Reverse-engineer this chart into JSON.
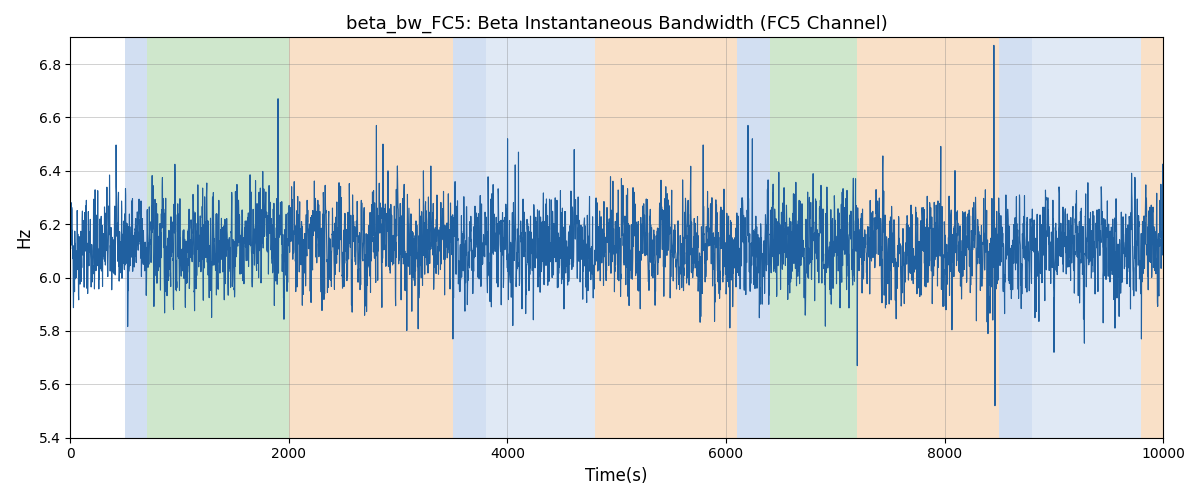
{
  "title": "beta_bw_FC5: Beta Instantaneous Bandwidth (FC5 Channel)",
  "xlabel": "Time(s)",
  "ylabel": "Hz",
  "xlim": [
    0,
    10000
  ],
  "ylim": [
    5.4,
    6.9
  ],
  "yticks": [
    5.4,
    5.6,
    5.8,
    6.0,
    6.2,
    6.4,
    6.6,
    6.8
  ],
  "xticks": [
    0,
    2000,
    4000,
    6000,
    8000,
    10000
  ],
  "line_color": "#2060a0",
  "line_width": 0.8,
  "seed": 42,
  "n_points": 5000,
  "background_color": "#ffffff",
  "regions": [
    {
      "start": 500,
      "end": 700,
      "color": "#aec6e8",
      "alpha": 0.55
    },
    {
      "start": 700,
      "end": 2000,
      "color": "#a8d5a2",
      "alpha": 0.55
    },
    {
      "start": 2000,
      "end": 3500,
      "color": "#f5c89a",
      "alpha": 0.55
    },
    {
      "start": 3500,
      "end": 3800,
      "color": "#aec6e8",
      "alpha": 0.55
    },
    {
      "start": 3800,
      "end": 4800,
      "color": "#c8d8ee",
      "alpha": 0.55
    },
    {
      "start": 4800,
      "end": 6100,
      "color": "#f5c89a",
      "alpha": 0.55
    },
    {
      "start": 6100,
      "end": 6400,
      "color": "#aec6e8",
      "alpha": 0.55
    },
    {
      "start": 6400,
      "end": 7200,
      "color": "#a8d5a2",
      "alpha": 0.55
    },
    {
      "start": 7200,
      "end": 8500,
      "color": "#f5c89a",
      "alpha": 0.55
    },
    {
      "start": 8500,
      "end": 8800,
      "color": "#aec6e8",
      "alpha": 0.55
    },
    {
      "start": 8800,
      "end": 9800,
      "color": "#c8d8ee",
      "alpha": 0.55
    },
    {
      "start": 9800,
      "end": 10100,
      "color": "#f5c89a",
      "alpha": 0.55
    }
  ],
  "mean": 6.12,
  "std": 0.09,
  "ar_coef": 0.45,
  "title_fontsize": 13
}
